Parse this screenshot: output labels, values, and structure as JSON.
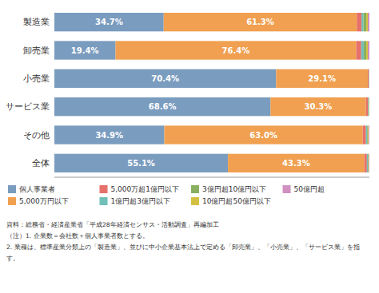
{
  "chart_data": {
    "type": "bar",
    "orientation": "horizontal",
    "stacked": true,
    "data_labels": true,
    "tick_labels": "y",
    "grid": false,
    "categories": [
      "製造業",
      "卸売業",
      "小売業",
      "サービス業",
      "その他",
      "全体"
    ],
    "xlim": [
      0,
      100
    ],
    "series": [
      {
        "name": "個人事業者",
        "color": "#7a9cbf",
        "values": [
          34.7,
          19.4,
          70.4,
          68.6,
          34.9,
          55.1
        ],
        "value_labels": [
          "34.7%",
          "19.4%",
          "70.4%",
          "68.6%",
          "34.9%",
          "55.1%"
        ]
      },
      {
        "name": "5,000万円以下",
        "color": "#f0a050",
        "values": [
          61.3,
          76.4,
          29.1,
          30.3,
          63.0,
          43.3
        ],
        "value_labels": [
          "61.3%",
          "76.4%",
          "29.1%",
          "30.3%",
          "63.0%",
          "43.3%"
        ]
      },
      {
        "name": "5,000万超1億円以下",
        "color": "#e8706a",
        "values": [
          1.5,
          1.6,
          0.3,
          0.6,
          1.0,
          0.8
        ]
      },
      {
        "name": "1億円超3億円以下",
        "color": "#70c0b8",
        "values": [
          0.6,
          0.8,
          0.1,
          0.2,
          0.4,
          0.3
        ]
      },
      {
        "name": "3億円超10億円以下",
        "color": "#88b060",
        "values": [
          0.9,
          0.8,
          0.05,
          0.15,
          0.3,
          0.2
        ]
      },
      {
        "name": "10億円超50億円以下",
        "color": "#d4c040",
        "values": [
          0.5,
          0.5,
          0.03,
          0.1,
          0.2,
          0.15
        ]
      },
      {
        "name": "50億円超",
        "color": "#d090c0",
        "values": [
          0.5,
          0.5,
          0.02,
          0.05,
          0.2,
          0.15
        ]
      }
    ],
    "annotations": [
      "資料：総務省・経済産業省「平成28年経済センサス・活動調査」再編加工",
      "（注）1. 企業数＝会社数＋個人事業者数とする。",
      "2. 業種は、標準産業分類上の「製造業」、並びに中小企業基本法上で定める「卸売業」、「小売業」、「サービス業」を指",
      "す。"
    ]
  }
}
